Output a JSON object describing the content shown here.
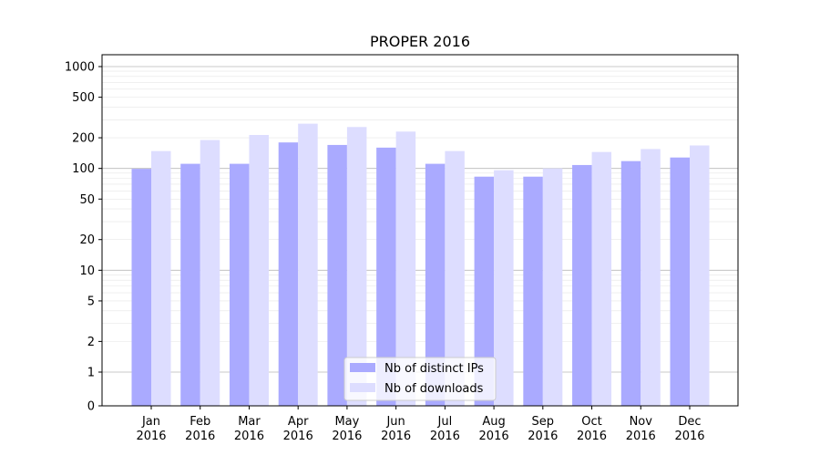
{
  "chart_data": {
    "type": "bar",
    "title": "PROPER 2016",
    "xlabel": "",
    "ylabel": "",
    "y_scale": "symlog",
    "ylim": [
      0,
      1300
    ],
    "y_ticks": [
      0,
      1,
      2,
      5,
      10,
      20,
      50,
      100,
      200,
      500,
      1000
    ],
    "y_tick_labels": [
      "0",
      "1",
      "2",
      "5",
      "10",
      "20",
      "50",
      "100",
      "200",
      "500",
      "1000"
    ],
    "grid": "horizontal",
    "legend_position": "bottom-center",
    "categories": [
      [
        "Jan",
        "2016"
      ],
      [
        "Feb",
        "2016"
      ],
      [
        "Mar",
        "2016"
      ],
      [
        "Apr",
        "2016"
      ],
      [
        "May",
        "2016"
      ],
      [
        "Jun",
        "2016"
      ],
      [
        "Jul",
        "2016"
      ],
      [
        "Aug",
        "2016"
      ],
      [
        "Sep",
        "2016"
      ],
      [
        "Oct",
        "2016"
      ],
      [
        "Nov",
        "2016"
      ],
      [
        "Dec",
        "2016"
      ]
    ],
    "series": [
      {
        "name": "Nb of distinct IPs",
        "color": "#aaaaff",
        "values": [
          99,
          111,
          111,
          180,
          170,
          160,
          111,
          83,
          83,
          108,
          118,
          128
        ]
      },
      {
        "name": "Nb of downloads",
        "color": "#ddddff",
        "values": [
          148,
          190,
          213,
          275,
          255,
          230,
          148,
          96,
          100,
          145,
          155,
          168
        ]
      }
    ]
  }
}
